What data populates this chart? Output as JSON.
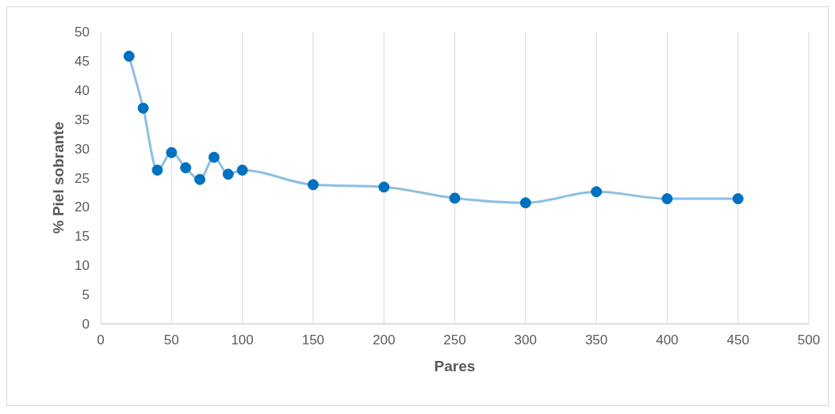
{
  "chart_data": {
    "type": "line",
    "xlabel": "Pares",
    "ylabel": "% Piel sobrante",
    "x": [
      20,
      30,
      40,
      50,
      60,
      70,
      80,
      90,
      100,
      150,
      200,
      250,
      300,
      350,
      400,
      450
    ],
    "series": [
      {
        "color": "#0070c0",
        "values": [
          45.8,
          36.9,
          26.3,
          29.3,
          26.7,
          24.7,
          28.5,
          25.6,
          26.3,
          23.8,
          23.4,
          21.5,
          20.7,
          22.6,
          21.4,
          21.4
        ]
      }
    ],
    "xlim": [
      0,
      500
    ],
    "xticks": [
      0,
      50,
      100,
      150,
      200,
      250,
      300,
      350,
      400,
      450,
      500
    ],
    "ylim": [
      0,
      50
    ],
    "yticks": [
      0,
      5,
      10,
      15,
      20,
      25,
      30,
      35,
      40,
      45,
      50
    ],
    "grid": "x",
    "marker": "circle",
    "line_style": "solid",
    "legend": false
  }
}
